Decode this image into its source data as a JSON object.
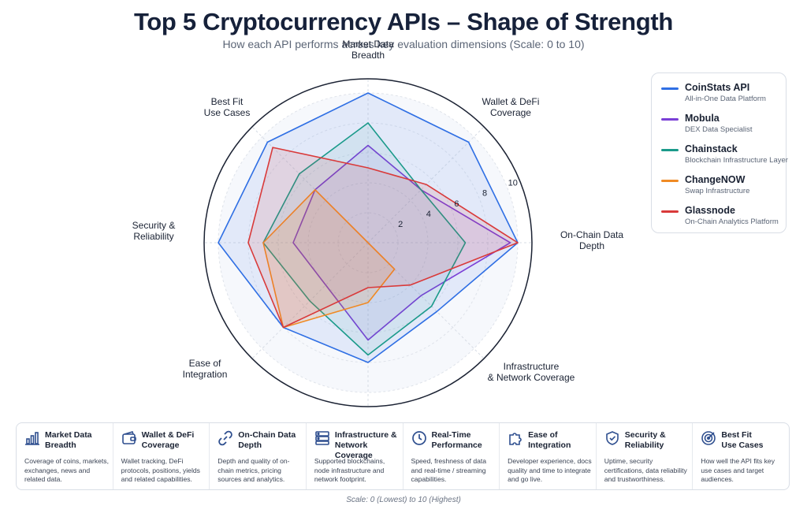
{
  "title": "Top 5 Cryptocurrency APIs – Shape of Strength",
  "subtitle": "How each API performs across key evaluation dimensions (Scale: 0 to 10)",
  "footnote": "Scale: 0 (Lowest) to 10 (Highest)",
  "chart_data": {
    "type": "radar",
    "title": "Top 5 Cryptocurrency APIs – Shape of Strength",
    "subtitle": "How each API performs across key evaluation dimensions (Scale: 0 to 10)",
    "axes": [
      {
        "lines": [
          "Market Data",
          "Breadth"
        ]
      },
      {
        "lines": [
          "Wallet & DeFi",
          "Coverage"
        ]
      },
      {
        "lines": [
          "On-Chain Data",
          "Depth"
        ]
      },
      {
        "lines": [
          "Infrastructure",
          "& Network Coverage"
        ]
      },
      {
        "lines": [
          "Real-Time",
          "Performance"
        ]
      },
      {
        "lines": [
          "Ease of",
          "Integration"
        ]
      },
      {
        "lines": [
          "Security &",
          "Reliability"
        ]
      },
      {
        "lines": [
          "Best Fit",
          "Use Cases"
        ]
      }
    ],
    "range": [
      0,
      10
    ],
    "tick_labels": [
      "2",
      "4",
      "6",
      "8",
      "10"
    ],
    "ticks": [
      2,
      4,
      6,
      8,
      10
    ],
    "grid": true,
    "legend_position": "right",
    "series": [
      {
        "name": "CoinStats API",
        "desc": "All-in-One Data Platform",
        "color": "#2f6fe4",
        "fill": "rgba(47,111,228,0.10)",
        "values": [
          10,
          9.5,
          10,
          6.5,
          8,
          8,
          10,
          9.5
        ]
      },
      {
        "name": "Mobula",
        "desc": "DEX Data Specialist",
        "color": "#7a3fd6",
        "fill": "rgba(122,63,214,0.07)",
        "values": [
          6.5,
          5,
          9.5,
          5,
          6.5,
          4,
          5,
          5
        ]
      },
      {
        "name": "Chainstack",
        "desc": "Blockchain Infrastructure Layer",
        "color": "#1a9a8a",
        "fill": "rgba(26,154,138,0.08)",
        "values": [
          8,
          5,
          6.5,
          6,
          7.5,
          5.5,
          7,
          6.5
        ]
      },
      {
        "name": "ChangeNOW",
        "desc": "Swap Infrastructure",
        "color": "#f08a24",
        "fill": "rgba(240,138,36,0.15)",
        "values": [
          0,
          0,
          0,
          2.5,
          4,
          8,
          7,
          5
        ]
      },
      {
        "name": "Glassnode",
        "desc": "On-Chain Analytics Platform",
        "color": "#d93a3a",
        "fill": "rgba(217,58,58,0.12)",
        "values": [
          5,
          5.5,
          10,
          4,
          3,
          8,
          8,
          9
        ]
      }
    ]
  },
  "dimensions": [
    {
      "icon": "bar-chart-icon",
      "title_lines": [
        "Market Data",
        "Breadth"
      ],
      "desc": "Coverage of coins, markets, exchanges, news and related data."
    },
    {
      "icon": "wallet-icon",
      "title_lines": [
        "Wallet & DeFi",
        "Coverage"
      ],
      "desc": "Wallet tracking, DeFi protocols, positions, yields and related capabilities."
    },
    {
      "icon": "link-icon",
      "title_lines": [
        "On-Chain Data",
        "Depth"
      ],
      "desc": "Depth and quality of on-chain metrics, pricing sources and analytics."
    },
    {
      "icon": "server-icon",
      "title_lines": [
        "Infrastructure &",
        "Network Coverage"
      ],
      "desc": "Supported blockchains, node infrastructure and network footprint."
    },
    {
      "icon": "clock-icon",
      "title_lines": [
        "Real-Time",
        "Performance"
      ],
      "desc": "Speed, freshness of data and real-time / streaming capabilities."
    },
    {
      "icon": "puzzle-icon",
      "title_lines": [
        "Ease of",
        "Integration"
      ],
      "desc": "Developer experience, docs quality and time to integrate and go live."
    },
    {
      "icon": "shield-check-icon",
      "title_lines": [
        "Security &",
        "Reliability"
      ],
      "desc": "Uptime, security certifications, data reliability and trustworthiness."
    },
    {
      "icon": "target-icon",
      "title_lines": [
        "Best Fit",
        "Use Cases"
      ],
      "desc": "How well the API fits key use cases and target audiences."
    }
  ]
}
